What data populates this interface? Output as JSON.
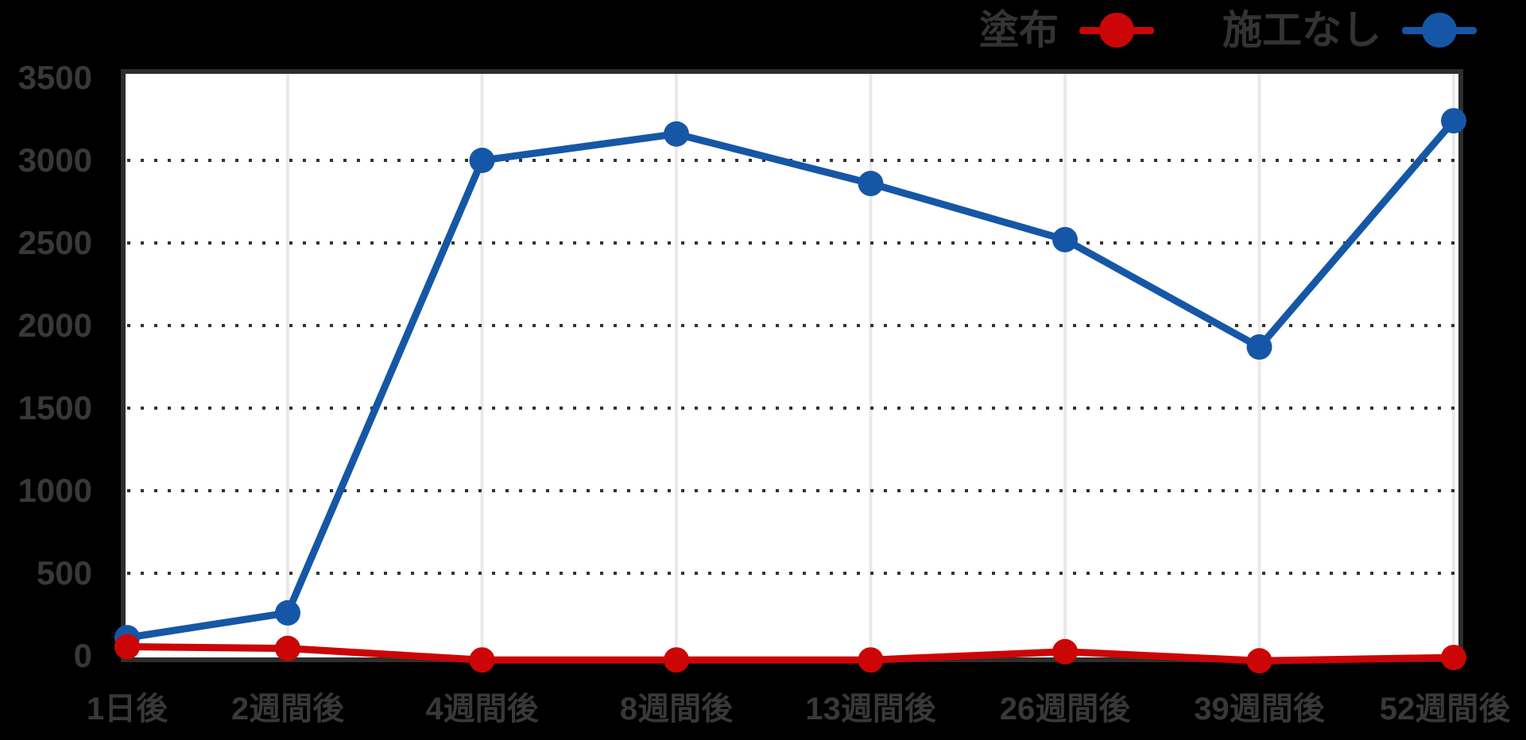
{
  "chart_data": {
    "type": "line",
    "categories": [
      "1日後",
      "2週間後",
      "4週間後",
      "8週間後",
      "13週間後",
      "26週間後",
      "39週間後",
      "52週間後"
    ],
    "series": [
      {
        "name": "塗布",
        "color": "#cc0606",
        "values": [
          55,
          45,
          -25,
          -25,
          -25,
          25,
          -30,
          -10
        ]
      },
      {
        "name": "施工なし",
        "color": "#1557a6",
        "values": [
          110,
          260,
          3000,
          3160,
          2860,
          2520,
          1870,
          3240
        ]
      }
    ],
    "title": "",
    "xlabel": "",
    "ylabel": "",
    "ylim": [
      0,
      3500
    ],
    "y_ticks": [
      0,
      500,
      1000,
      1500,
      2000,
      2500,
      3000,
      3500
    ],
    "legend_position": "top-right",
    "grid": {
      "horizontal": "dotted-dark",
      "vertical": "solid-light"
    }
  },
  "colors": {
    "background": "#000000",
    "plot_background": "#ffffff",
    "plot_border": "#2e2e2e",
    "grid_horizontal": "#333333",
    "grid_vertical": "#e9e9e9",
    "tick_label": "#383838",
    "legend_text": "#333333"
  }
}
